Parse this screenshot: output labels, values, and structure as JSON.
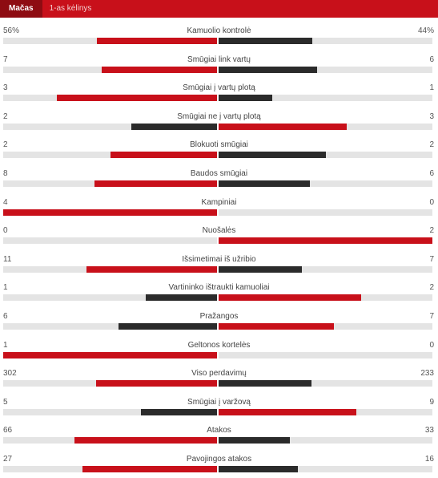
{
  "tabs": [
    "Mačas",
    "1-as kėlinys"
  ],
  "colors": {
    "red": "#c8101a",
    "dark": "#2b2b2b",
    "track": "#e4e4e4"
  },
  "stats": [
    {
      "label": "Kamuolio kontrolė",
      "home": "56%",
      "away": "44%",
      "home_val": 56,
      "away_val": 44
    },
    {
      "label": "Smūgiai link vartų",
      "home": "7",
      "away": "6",
      "home_val": 7,
      "away_val": 6
    },
    {
      "label": "Smūgiai į vartų plotą",
      "home": "3",
      "away": "1",
      "home_val": 3,
      "away_val": 1
    },
    {
      "label": "Smūgiai ne į vartų plotą",
      "home": "2",
      "away": "3",
      "home_val": 2,
      "away_val": 3
    },
    {
      "label": "Blokuoti smūgiai",
      "home": "2",
      "away": "2",
      "home_val": 2,
      "away_val": 2
    },
    {
      "label": "Baudos smūgiai",
      "home": "8",
      "away": "6",
      "home_val": 8,
      "away_val": 6
    },
    {
      "label": "Kampiniai",
      "home": "4",
      "away": "0",
      "home_val": 4,
      "away_val": 0
    },
    {
      "label": "Nuošalės",
      "home": "0",
      "away": "2",
      "home_val": 0,
      "away_val": 2
    },
    {
      "label": "Išsimetimai iš užribio",
      "home": "11",
      "away": "7",
      "home_val": 11,
      "away_val": 7
    },
    {
      "label": "Vartininko ištraukti kamuoliai",
      "home": "1",
      "away": "2",
      "home_val": 1,
      "away_val": 2
    },
    {
      "label": "Pražangos",
      "home": "6",
      "away": "7",
      "home_val": 6,
      "away_val": 7
    },
    {
      "label": "Geltonos kortelės",
      "home": "1",
      "away": "0",
      "home_val": 1,
      "away_val": 0
    },
    {
      "label": "Viso perdavimų",
      "home": "302",
      "away": "233",
      "home_val": 302,
      "away_val": 233
    },
    {
      "label": "Smūgiai į varžovą",
      "home": "5",
      "away": "9",
      "home_val": 5,
      "away_val": 9
    },
    {
      "label": "Atakos",
      "home": "66",
      "away": "33",
      "home_val": 66,
      "away_val": 33
    },
    {
      "label": "Pavojingos atakos",
      "home": "27",
      "away": "16",
      "home_val": 27,
      "away_val": 16
    }
  ]
}
